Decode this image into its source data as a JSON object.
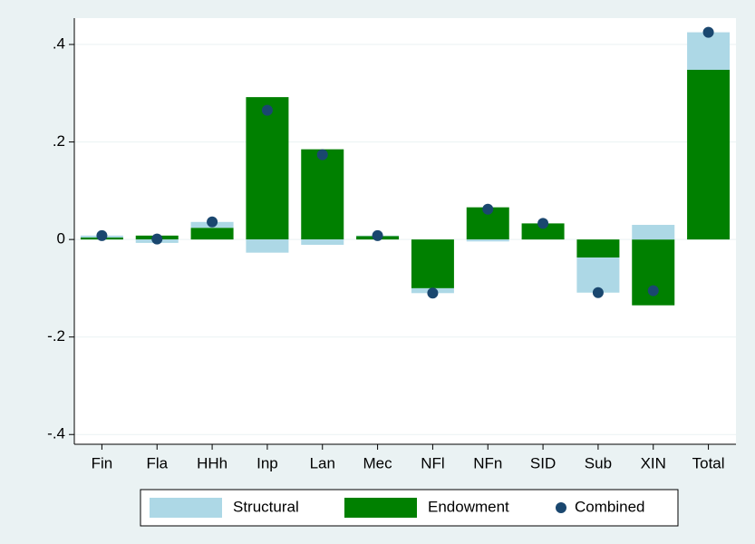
{
  "chart_data": {
    "type": "bar",
    "categories": [
      "Fin",
      "Fla",
      "HHh",
      "Inp",
      "Lan",
      "Mec",
      "NFl",
      "NFn",
      "SID",
      "Sub",
      "XIN",
      "Total"
    ],
    "series": [
      {
        "name": "Structural",
        "type": "bar",
        "color": "#add8e6",
        "values": [
          0.004,
          -0.007,
          0.012,
          -0.027,
          -0.011,
          0.001,
          -0.01,
          -0.004,
          0.0,
          -0.072,
          0.03,
          0.077
        ]
      },
      {
        "name": "Endowment",
        "type": "bar",
        "color": "#008000",
        "values": [
          0.004,
          0.008,
          0.024,
          0.292,
          0.185,
          0.007,
          -0.1,
          0.066,
          0.033,
          -0.037,
          -0.135,
          0.348
        ]
      },
      {
        "name": "Combined",
        "type": "scatter",
        "color": "#1a476f",
        "values": [
          0.008,
          0.001,
          0.036,
          0.265,
          0.174,
          0.008,
          -0.11,
          0.062,
          0.033,
          -0.109,
          -0.105,
          0.425
        ]
      }
    ],
    "ylim": [
      -0.42,
      0.454
    ],
    "yticks": [
      {
        "value": -0.4,
        "label": "-.4"
      },
      {
        "value": -0.2,
        "label": "-.2"
      },
      0,
      {
        "value": 0.2,
        "label": ".2"
      },
      {
        "value": 0.4,
        "label": ".4"
      }
    ],
    "grid": true,
    "stacked": true,
    "legend": "bottom"
  }
}
